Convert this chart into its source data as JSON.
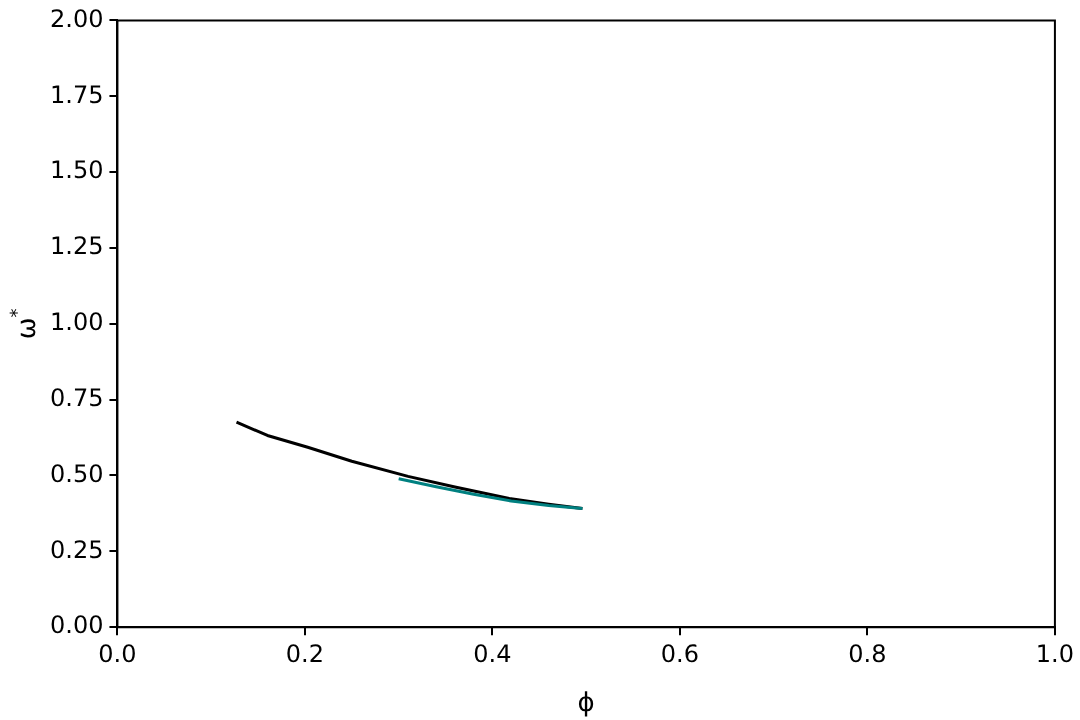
{
  "chart_data": {
    "type": "line",
    "xlabel": "ϕ",
    "ylabel": "ω$^{*}$",
    "series": [
      {
        "color": "#008080",
        "x": [
          0.3,
          0.34,
          0.38,
          0.42,
          0.46,
          0.496
        ],
        "values": [
          0.489,
          0.463,
          0.438,
          0.416,
          0.401,
          0.391
        ]
      },
      {
        "color": "#000000",
        "x": [
          0.127,
          0.16,
          0.203,
          0.25,
          0.31,
          0.36,
          0.418,
          0.46,
          0.496
        ],
        "values": [
          0.676,
          0.632,
          0.593,
          0.547,
          0.497,
          0.462,
          0.424,
          0.405,
          0.391
        ]
      }
    ],
    "xlim": [
      0,
      1
    ],
    "ylim": [
      0,
      2
    ],
    "xticks": [
      {
        "value": 0,
        "label": "0.0"
      },
      {
        "value": 0.2,
        "label": "0.2"
      },
      {
        "value": 0.4,
        "label": "0.4"
      },
      {
        "value": 0.6,
        "label": "0.6"
      },
      {
        "value": 0.8,
        "label": "0.8"
      },
      {
        "value": 1,
        "label": "1.0"
      }
    ],
    "yticks": [
      {
        "value": 0,
        "label": "0.00"
      },
      {
        "value": 0.25,
        "label": "0.25"
      },
      {
        "value": 0.5,
        "label": "0.50"
      },
      {
        "value": 0.75,
        "label": "0.75"
      },
      {
        "value": 1,
        "label": "1.00"
      },
      {
        "value": 1.25,
        "label": "1.25"
      },
      {
        "value": 1.5,
        "label": "1.50"
      },
      {
        "value": 1.75,
        "label": "1.75"
      },
      {
        "value": 2,
        "label": "2.00"
      }
    ],
    "grid": false,
    "legend": false,
    "marker": "none",
    "line_style": "solid"
  }
}
